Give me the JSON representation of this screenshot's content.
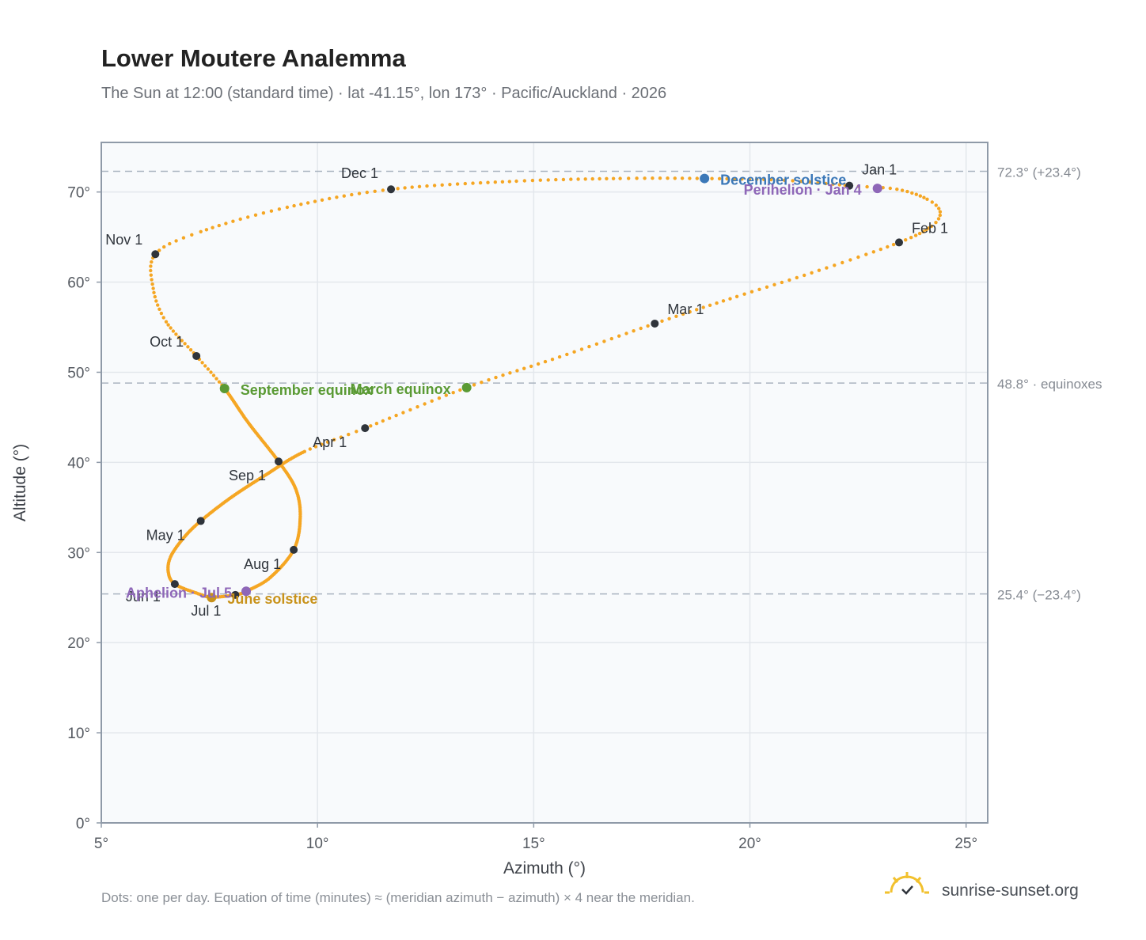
{
  "header": {
    "title": "Lower Moutere Analemma",
    "subtitle": "The Sun at 12:00 (standard time) · lat -41.15°, lon 173° · Pacific/Auckland · 2026"
  },
  "footer": {
    "note": "Dots: one per day. Equation of time (minutes) ≈ (meridian azimuth − azimuth) × 4 near the meridian.",
    "brand": "sunrise-sunset.org",
    "brand_icon": "sun-logo-icon"
  },
  "colors": {
    "curve": "#f5a623",
    "month_dot": "#2f343b",
    "equinox": "#5a9a34",
    "december_solstice": "#3b78b8",
    "june_solstice": "#c8921a",
    "apsis": "#8e67b8",
    "plot_bg": "#f8fafc",
    "grid": "#e3e7ec",
    "frame": "#8f9aa8",
    "ref_line": "#aab4c0"
  },
  "chart_data": {
    "type": "scatter",
    "xlabel": "Azimuth (°)",
    "ylabel": "Altitude (°)",
    "xlim": [
      5,
      25.5
    ],
    "ylim": [
      0,
      75.5
    ],
    "x_ticks": [
      {
        "value": 5,
        "label": "5°"
      },
      {
        "value": 10,
        "label": "10°"
      },
      {
        "value": 15,
        "label": "15°"
      },
      {
        "value": 20,
        "label": "20°"
      },
      {
        "value": 25,
        "label": "25°"
      }
    ],
    "y_ticks": [
      {
        "value": 0,
        "label": "0°"
      },
      {
        "value": 10,
        "label": "10°"
      },
      {
        "value": 20,
        "label": "20°"
      },
      {
        "value": 30,
        "label": "30°"
      },
      {
        "value": 40,
        "label": "40°"
      },
      {
        "value": 50,
        "label": "50°"
      },
      {
        "value": 60,
        "label": "60°"
      },
      {
        "value": 70,
        "label": "70°"
      }
    ],
    "grid": true,
    "reference_lines": [
      {
        "y": 72.3,
        "label": "72.3° (+23.4°)"
      },
      {
        "y": 48.8,
        "label": "48.8° · equinoxes"
      },
      {
        "y": 25.4,
        "label": "25.4° (−23.4°)"
      }
    ],
    "months": [
      {
        "label": "Jan 1",
        "azimuth": 22.3,
        "altitude": 70.7
      },
      {
        "label": "Feb 1",
        "azimuth": 23.45,
        "altitude": 64.4
      },
      {
        "label": "Mar 1",
        "azimuth": 17.8,
        "altitude": 55.4
      },
      {
        "label": "Apr 1",
        "azimuth": 11.1,
        "altitude": 43.8
      },
      {
        "label": "May 1",
        "azimuth": 7.3,
        "altitude": 33.5
      },
      {
        "label": "Jun 1",
        "azimuth": 6.7,
        "altitude": 26.5
      },
      {
        "label": "Jul 1",
        "azimuth": 8.1,
        "altitude": 25.3
      },
      {
        "label": "Aug 1",
        "azimuth": 9.45,
        "altitude": 30.3
      },
      {
        "label": "Sep 1",
        "azimuth": 9.1,
        "altitude": 40.1
      },
      {
        "label": "Oct 1",
        "azimuth": 7.2,
        "altitude": 51.8
      },
      {
        "label": "Nov 1",
        "azimuth": 6.25,
        "altitude": 63.1
      },
      {
        "label": "Dec 1",
        "azimuth": 11.7,
        "altitude": 70.3
      }
    ],
    "events": [
      {
        "label": "December solstice",
        "azimuth": 18.95,
        "altitude": 71.5,
        "color_key": "december_solstice"
      },
      {
        "label": "Perihelion · Jan 4",
        "azimuth": 22.95,
        "altitude": 70.4,
        "color_key": "apsis"
      },
      {
        "label": "March equinox",
        "azimuth": 13.45,
        "altitude": 48.3,
        "color_key": "equinox"
      },
      {
        "label": "September equinox",
        "azimuth": 7.85,
        "altitude": 48.2,
        "color_key": "equinox"
      },
      {
        "label": "June solstice",
        "azimuth": 7.55,
        "altitude": 25.0,
        "color_key": "june_solstice"
      },
      {
        "label": "Aphelion · Jul 5",
        "azimuth": 8.35,
        "altitude": 25.7,
        "color_key": "apsis"
      }
    ],
    "curve_loop": [
      [
        22.3,
        70.7
      ],
      [
        23.4,
        70.3
      ],
      [
        24.1,
        69.2
      ],
      [
        24.4,
        67.8
      ],
      [
        24.2,
        66.2
      ],
      [
        23.45,
        64.4
      ],
      [
        21.6,
        61.3
      ],
      [
        19.7,
        58.4
      ],
      [
        17.8,
        55.4
      ],
      [
        15.6,
        51.7
      ],
      [
        13.45,
        48.3
      ],
      [
        11.1,
        43.8
      ],
      [
        9.7,
        41.2
      ],
      [
        8.8,
        38.6
      ],
      [
        8.0,
        36.1
      ],
      [
        7.3,
        33.5
      ],
      [
        6.9,
        31.6
      ],
      [
        6.6,
        29.5
      ],
      [
        6.55,
        27.8
      ],
      [
        6.7,
        26.5
      ],
      [
        7.2,
        25.5
      ],
      [
        7.55,
        25.05
      ],
      [
        8.1,
        25.3
      ],
      [
        8.35,
        25.7
      ],
      [
        8.9,
        27.2
      ],
      [
        9.45,
        30.3
      ],
      [
        9.6,
        33.8
      ],
      [
        9.5,
        37.0
      ],
      [
        9.1,
        40.1
      ],
      [
        8.4,
        44.4
      ],
      [
        7.85,
        48.2
      ],
      [
        7.2,
        51.8
      ],
      [
        6.5,
        55.6
      ],
      [
        6.2,
        59.3
      ],
      [
        6.25,
        63.1
      ],
      [
        7.3,
        65.6
      ],
      [
        9.3,
        68.3
      ],
      [
        11.7,
        70.3
      ],
      [
        14.6,
        71.2
      ],
      [
        17.0,
        71.5
      ],
      [
        18.95,
        71.5
      ],
      [
        20.8,
        71.3
      ],
      [
        22.3,
        70.7
      ]
    ]
  }
}
